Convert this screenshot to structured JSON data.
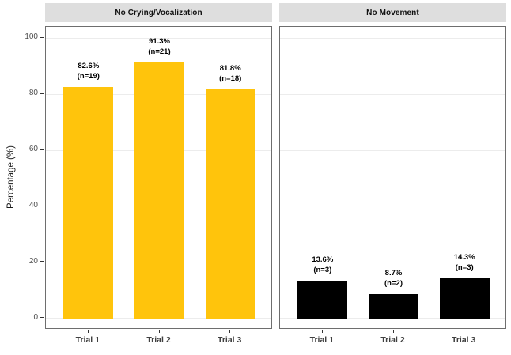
{
  "chart_data": {
    "type": "bar",
    "ylabel": "Percentage (%)",
    "yticks": [
      0,
      20,
      40,
      60,
      80,
      100
    ],
    "ylim": [
      -4,
      104
    ],
    "grid": "major-horizontal",
    "legend": "none",
    "facets": [
      {
        "title": "No Crying/Vocalization",
        "bar_color": "#FFC40C",
        "categories": [
          "Trial 1",
          "Trial 2",
          "Trial 3"
        ],
        "values": [
          82.6,
          91.3,
          81.8
        ],
        "counts": [
          19,
          21,
          18
        ],
        "labels": [
          [
            "82.6%",
            "(n=19)"
          ],
          [
            "91.3%",
            "(n=21)"
          ],
          [
            "81.8%",
            "(n=18)"
          ]
        ]
      },
      {
        "title": "No Movement",
        "bar_color": "#000000",
        "categories": [
          "Trial 1",
          "Trial 2",
          "Trial 3"
        ],
        "values": [
          13.6,
          8.7,
          14.3
        ],
        "counts": [
          3,
          2,
          3
        ],
        "labels": [
          [
            "13.6%",
            "(n=3)"
          ],
          [
            "8.7%",
            "(n=2)"
          ],
          [
            "14.3%",
            "(n=3)"
          ]
        ]
      }
    ],
    "colors": {
      "strip_bg": "#DEDEDE",
      "panel_border": "#6E6E6E",
      "gridline": "#ECECEC",
      "tick_label": "#4D4D4D",
      "axis_title": "#1A1A1A",
      "x_label": "#404040",
      "background": "#FFFFFF"
    }
  }
}
